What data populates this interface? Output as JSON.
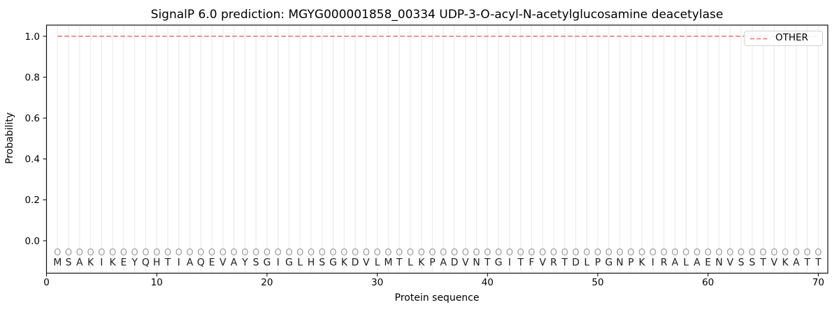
{
  "chart_data": {
    "type": "line",
    "title": "SignalP 6.0 prediction: MGYG000001858_00334 UDP-3-O-acyl-N-acetylglucosamine deacetylase",
    "xlabel": "Protein sequence",
    "ylabel": "Probability",
    "xlim": [
      0,
      71
    ],
    "ylim": [
      -0.17,
      1.06
    ],
    "xticks": [
      0,
      10,
      20,
      30,
      40,
      50,
      60,
      70
    ],
    "yticks": [
      "0.0",
      "0.2",
      "0.4",
      "0.6",
      "0.8",
      "1.0"
    ],
    "grid": "vertical line at every residue position",
    "legend_position": "upper right",
    "series": [
      {
        "name": "OTHER",
        "style": "dashed",
        "color": "#f08080",
        "x": [
          1,
          2,
          3,
          4,
          5,
          6,
          7,
          8,
          9,
          10,
          11,
          12,
          13,
          14,
          15,
          16,
          17,
          18,
          19,
          20,
          21,
          22,
          23,
          24,
          25,
          26,
          27,
          28,
          29,
          30,
          31,
          32,
          33,
          34,
          35,
          36,
          37,
          38,
          39,
          40,
          41,
          42,
          43,
          44,
          45,
          46,
          47,
          48,
          49,
          50,
          51,
          52,
          53,
          54,
          55,
          56,
          57,
          58,
          59,
          60,
          61,
          62,
          63,
          64,
          65,
          66,
          67,
          68,
          69,
          70
        ],
        "values": [
          1.0,
          1.0,
          1.0,
          1.0,
          1.0,
          1.0,
          1.0,
          1.0,
          1.0,
          1.0,
          1.0,
          1.0,
          1.0,
          1.0,
          1.0,
          1.0,
          1.0,
          1.0,
          1.0,
          1.0,
          1.0,
          1.0,
          1.0,
          1.0,
          1.0,
          1.0,
          1.0,
          1.0,
          1.0,
          1.0,
          1.0,
          1.0,
          1.0,
          1.0,
          1.0,
          1.0,
          1.0,
          1.0,
          1.0,
          1.0,
          1.0,
          1.0,
          1.0,
          1.0,
          1.0,
          1.0,
          1.0,
          1.0,
          1.0,
          1.0,
          1.0,
          1.0,
          1.0,
          1.0,
          1.0,
          1.0,
          1.0,
          1.0,
          1.0,
          1.0,
          1.0,
          1.0,
          1.0,
          1.0,
          1.0,
          1.0,
          1.0,
          1.0,
          1.0,
          1.0
        ]
      }
    ],
    "sequence": "MSAKIKEYQHTIAQEVAYSGIGLHSGKDVLMTLKPADVNTGITFVRTDLPGNPKIRALAENVSSTVKATT",
    "residue_marker": "O"
  },
  "colors": {
    "line": "#f08080",
    "grid": "#ececec",
    "spine": "#111111",
    "tick_label": "#000000",
    "residue_marker": "#9e9e9e",
    "sequence_letter": "#212121",
    "legend_border": "#d2d2d2"
  }
}
